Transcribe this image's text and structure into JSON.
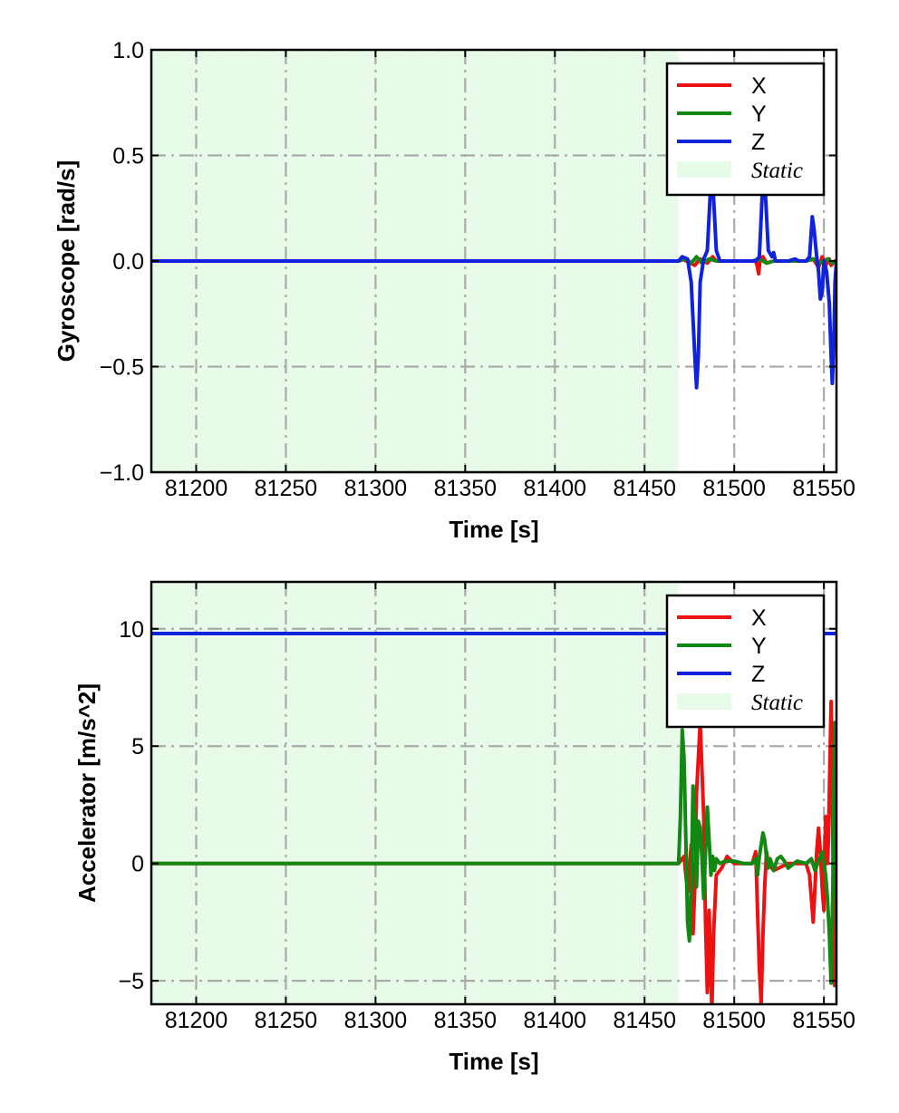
{
  "colors": {
    "x": "#ee1111",
    "y": "#118811",
    "z": "#1122dd",
    "static": "#e8fbe8",
    "grid": "#aaaaaa"
  },
  "chart_data": [
    {
      "type": "line",
      "xlabel": "Time [s]",
      "ylabel": "Gyroscope [rad/s]",
      "xlim": [
        81175,
        81557
      ],
      "ylim": [
        -1.0,
        1.0
      ],
      "xticks": [
        81200,
        81250,
        81300,
        81350,
        81400,
        81450,
        81500,
        81550
      ],
      "xtick_labels": [
        "81200",
        "81250",
        "81300",
        "81350",
        "81400",
        "81450",
        "81500",
        "81550"
      ],
      "yticks": [
        -1.0,
        -0.5,
        0.0,
        0.5,
        1.0
      ],
      "ytick_labels": [
        "−1.0",
        "−0.5",
        "0.0",
        "0.5",
        "1.0"
      ],
      "grid": true,
      "legend": "top-right",
      "static_region": [
        81175,
        81469
      ],
      "legend_entries": [
        "X",
        "Y",
        "Z",
        "Static"
      ],
      "series": [
        {
          "name": "X",
          "color_key": "x",
          "x": [
            81175,
            81469,
            81471,
            81478,
            81481,
            81485,
            81488,
            81490,
            81512,
            81513,
            81513.6,
            81514.3,
            81516,
            81518,
            81522,
            81540,
            81544,
            81547,
            81549,
            81551,
            81553,
            81554,
            81556,
            81557
          ],
          "y": [
            0,
            0,
            0.01,
            -0.02,
            0.01,
            -0.01,
            0.02,
            0,
            0,
            -0.03,
            -0.06,
            0,
            0.02,
            -0.01,
            0,
            0,
            0.01,
            -0.03,
            0.02,
            -0.02,
            0.01,
            -0.02,
            0,
            0
          ]
        },
        {
          "name": "Y",
          "color_key": "y",
          "x": [
            81175,
            81469,
            81473,
            81476,
            81479,
            81482,
            81486,
            81490,
            81510,
            81514,
            81518,
            81522,
            81540,
            81544,
            81548,
            81552,
            81555,
            81557
          ],
          "y": [
            0,
            0,
            0.01,
            -0.01,
            0.02,
            -0.01,
            0.01,
            0,
            0,
            0.01,
            -0.01,
            0,
            0,
            0.01,
            -0.01,
            0.01,
            -0.01,
            0
          ]
        },
        {
          "name": "Z",
          "color_key": "z",
          "x": [
            81175,
            81469,
            81471,
            81474,
            81476,
            81478,
            81479,
            81480,
            81481,
            81483,
            81485,
            81486.5,
            81487.5,
            81488.5,
            81490,
            81492,
            81512,
            81514,
            81515.5,
            81516.5,
            81517.5,
            81519,
            81521,
            81522,
            81523,
            81530,
            81534,
            81536,
            81540,
            81542,
            81543.5,
            81544.5,
            81546,
            81547,
            81548,
            81549,
            81550,
            81551.5,
            81553,
            81554,
            81554.7,
            81555.5,
            81556.2,
            81557
          ],
          "y": [
            0,
            0,
            0.02,
            0.01,
            -0.1,
            -0.45,
            -0.6,
            -0.45,
            -0.1,
            0.01,
            0.05,
            0.3,
            0.43,
            0.3,
            0.05,
            0,
            0,
            0.02,
            0.3,
            0.42,
            0.3,
            0.05,
            0.02,
            0.04,
            0,
            0,
            0.01,
            0,
            0,
            0.02,
            0.21,
            0.15,
            0.02,
            -0.05,
            -0.18,
            -0.15,
            0,
            -0.05,
            -0.2,
            -0.45,
            -0.58,
            -0.4,
            -0.1,
            0
          ]
        }
      ]
    },
    {
      "type": "line",
      "xlabel": "Time [s]",
      "ylabel": "Accelerator [m/s^2]",
      "xlim": [
        81175,
        81557
      ],
      "ylim": [
        -6.0,
        12.0
      ],
      "xticks": [
        81200,
        81250,
        81300,
        81350,
        81400,
        81450,
        81500,
        81550
      ],
      "xtick_labels": [
        "81200",
        "81250",
        "81300",
        "81350",
        "81400",
        "81450",
        "81500",
        "81550"
      ],
      "yticks": [
        -5,
        0,
        5,
        10
      ],
      "ytick_labels": [
        "−5",
        "0",
        "5",
        "10"
      ],
      "grid": true,
      "legend": "top-right",
      "static_region": [
        81175,
        81469
      ],
      "legend_entries": [
        "X",
        "Y",
        "Z",
        "Static"
      ],
      "series": [
        {
          "name": "X",
          "color_key": "x",
          "x": [
            81175,
            81469,
            81472,
            81474,
            81476,
            81477,
            81478,
            81479,
            81480,
            81481,
            81483,
            81484,
            81485,
            81486,
            81487.5,
            81488.5,
            81490,
            81493,
            81496,
            81500,
            81510,
            81512,
            81513,
            81514,
            81515,
            81516,
            81517,
            81518,
            81519,
            81522,
            81530,
            81540,
            81542,
            81543,
            81544,
            81545,
            81546,
            81547,
            81548,
            81549,
            81550,
            81550.5,
            81551,
            81551.5,
            81552,
            81552.5,
            81553,
            81553.5,
            81554,
            81554.5,
            81555,
            81555.5,
            81556,
            81556.5,
            81557
          ],
          "y": [
            0,
            0,
            0.3,
            -1.2,
            0.8,
            -3.0,
            -1.0,
            3.0,
            4.5,
            6.0,
            2.0,
            -2.5,
            -5.5,
            -2.0,
            -6.3,
            -3.0,
            -0.5,
            -0.2,
            0.3,
            0,
            0,
            0.5,
            -2.0,
            -4.5,
            -6.0,
            -3.0,
            -1.0,
            0.5,
            0,
            -0.3,
            0,
            0,
            -0.5,
            -1.5,
            -2.5,
            -1.0,
            0.5,
            1.5,
            0.5,
            -1.0,
            -2.0,
            0.5,
            2.0,
            1.5,
            0,
            1.0,
            3.0,
            5.0,
            6.9,
            4.0,
            1.0,
            -2.0,
            -5.2,
            0.5,
            0
          ]
        },
        {
          "name": "Y",
          "color_key": "y",
          "x": [
            81175,
            81469,
            81470,
            81471,
            81472,
            81473,
            81474,
            81475,
            81476,
            81477,
            81478,
            81479,
            81480,
            81481,
            81482,
            81483,
            81484,
            81485,
            81486,
            81487,
            81488,
            81489,
            81490,
            81492,
            81495,
            81500,
            81505,
            81510,
            81512,
            81513,
            81514,
            81515,
            81516,
            81517,
            81518,
            81519,
            81520,
            81522,
            81524,
            81526,
            81528,
            81530,
            81535,
            81540,
            81543,
            81545,
            81547,
            81549,
            81551,
            81552,
            81553,
            81554,
            81555,
            81556,
            81557
          ],
          "y": [
            0,
            0,
            2.0,
            5.7,
            4.5,
            1.0,
            -2.5,
            -3.3,
            -1.0,
            3.3,
            2.0,
            -1.0,
            1.8,
            1.5,
            0.2,
            -1.5,
            0.5,
            2.4,
            1.0,
            -0.5,
            0.3,
            -0.3,
            0.2,
            0,
            0.1,
            0.1,
            0,
            0,
            0.2,
            -0.5,
            0.3,
            0.8,
            1.3,
            1.0,
            0.3,
            -0.2,
            0.2,
            -0.3,
            0.2,
            0.3,
            0.1,
            -0.2,
            0.1,
            0,
            0.2,
            -0.3,
            0.1,
            0.5,
            -0.5,
            -1.5,
            -3.0,
            -5.1,
            -1.0,
            6.0,
            0.5
          ]
        },
        {
          "name": "Z",
          "color_key": "z",
          "x": [
            81175,
            81220,
            81260,
            81300,
            81340,
            81380,
            81420,
            81460,
            81469,
            81490,
            81510,
            81530,
            81550,
            81557
          ],
          "y": [
            9.8,
            9.8,
            9.8,
            9.8,
            9.8,
            9.8,
            9.8,
            9.8,
            9.8,
            9.8,
            9.8,
            9.8,
            9.8,
            9.8
          ]
        }
      ]
    }
  ]
}
